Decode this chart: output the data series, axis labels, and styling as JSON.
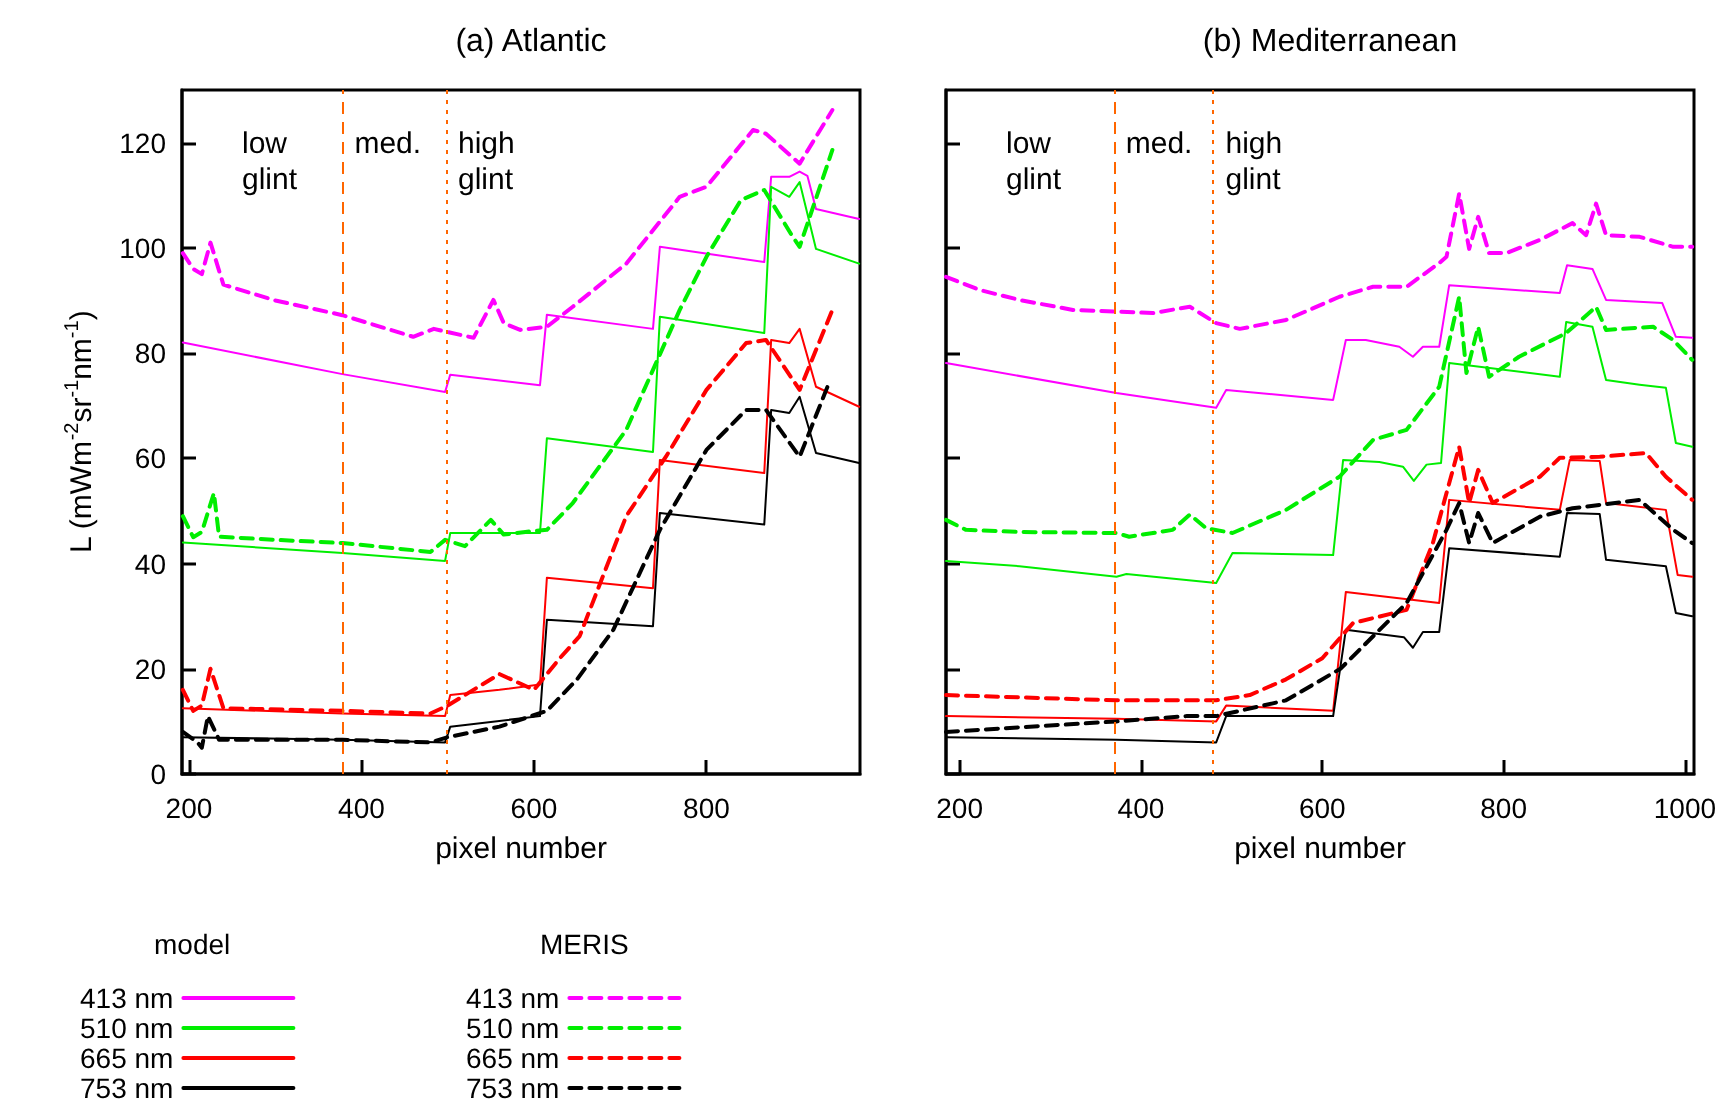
{
  "chart_data": [
    {
      "type": "line",
      "title": "(a) Atlantic",
      "xlabel": "pixel number",
      "ylabel": "L (mWm$^{-2}$sr$^{-1}$nm$^{-1}$)",
      "xlim": [
        192,
        978
      ],
      "xticks": [
        200,
        400,
        600,
        800
      ],
      "ylim": [
        0,
        130
      ],
      "yticks": [
        0,
        20,
        40,
        60,
        80,
        100,
        120
      ],
      "grid": false,
      "marker": "none",
      "legend": "bottom left",
      "annotations": [
        "model",
        "MERIS",
        "low\nglint",
        "med.",
        "high\nglint"
      ],
      "ref_lines": [
        {
          "axis": "x",
          "value": 378,
          "color": "#ff6600",
          "line_style": "dashed"
        },
        {
          "axis": "x",
          "value": 498,
          "color": "#ff6600",
          "line_style": "dotted"
        }
      ],
      "series": [
        {
          "name": "413 nm",
          "color": "#ff00ff",
          "line_style": "solid",
          "x": [
            193,
            378,
            497,
            503,
            607,
            615,
            738,
            746,
            867,
            875,
            896,
            908,
            917,
            927,
            977
          ],
          "values": [
            82,
            76,
            72.6,
            75.9,
            73.9,
            87.3,
            84.6,
            100.2,
            97.3,
            113.5,
            113.5,
            114.5,
            113.7,
            107.4,
            105.5
          ]
        },
        {
          "name": "510 nm",
          "color": "#00ee00",
          "line_style": "solid",
          "x": [
            193,
            378,
            497,
            503,
            607,
            615,
            738,
            746,
            867,
            875,
            896,
            908,
            927,
            977
          ],
          "values": [
            44,
            42,
            40.5,
            45.8,
            45.8,
            63.8,
            61.2,
            86.9,
            83.8,
            111.6,
            109.7,
            112.5,
            99.8,
            97
          ]
        },
        {
          "name": "665 nm",
          "color": "#ff0000",
          "line_style": "solid",
          "x": [
            193,
            378,
            497,
            503,
            560,
            607,
            615,
            738,
            746,
            867,
            875,
            896,
            908,
            927,
            977
          ],
          "values": [
            12.5,
            11.5,
            11,
            15,
            16,
            17,
            37.3,
            35.3,
            59.7,
            57.2,
            82.5,
            81.9,
            84.6,
            73.6,
            69.8
          ]
        },
        {
          "name": "753 nm",
          "color": "#000000",
          "line_style": "solid",
          "x": [
            193,
            378,
            497,
            503,
            607,
            615,
            738,
            746,
            867,
            875,
            896,
            908,
            927,
            977
          ],
          "values": [
            7,
            6.5,
            6,
            9,
            11,
            29.3,
            28.1,
            49.6,
            47.4,
            69.2,
            68.6,
            71.7,
            61,
            59.1
          ]
        },
        {
          "name": "413 nm",
          "color": "#ff00ff",
          "line_style": "dashed",
          "x": [
            193,
            205,
            215,
            225,
            240,
            300,
            378,
            460,
            484,
            497,
            530,
            553,
            565,
            584,
            615,
            645,
            707,
            769,
            800,
            854,
            869,
            908,
            946
          ],
          "values": [
            99,
            96,
            95,
            101,
            93,
            90,
            87.2,
            83.1,
            84.6,
            84.1,
            82.9,
            90.1,
            85.7,
            84.4,
            85,
            88.8,
            97,
            109.7,
            111.6,
            122.4,
            121.7,
            116,
            126.2
          ]
        },
        {
          "name": "510 nm",
          "color": "#00ee00",
          "line_style": "dashed",
          "x": [
            193,
            205,
            215,
            229,
            235,
            300,
            378,
            480,
            497,
            520,
            550,
            565,
            590,
            615,
            645,
            707,
            769,
            800,
            840,
            867,
            900,
            908,
            946
          ],
          "values": [
            49,
            45,
            46,
            53.4,
            45.1,
            44.5,
            43.9,
            42.2,
            44.5,
            43.3,
            48.3,
            45.5,
            46,
            46.4,
            51.5,
            65.4,
            88.2,
            98.3,
            109.1,
            111,
            102.1,
            100.2,
            118.6
          ]
        },
        {
          "name": "665 nm",
          "color": "#ff0000",
          "line_style": "dashed",
          "x": [
            193,
            205,
            215,
            225,
            240,
            378,
            480,
            500,
            560,
            600,
            630,
            653,
            707,
            753,
            800,
            846,
            869,
            908,
            946
          ],
          "values": [
            16,
            12,
            13,
            20,
            12.5,
            12,
            11.5,
            13,
            19,
            16,
            22,
            26.2,
            49,
            60.3,
            73,
            81.9,
            82.5,
            73,
            88.2
          ]
        },
        {
          "name": "753 nm",
          "color": "#000000",
          "line_style": "dashed",
          "x": [
            193,
            210,
            215,
            222,
            235,
            378,
            480,
            500,
            560,
            615,
            650,
            692,
            746,
            800,
            846,
            869,
            908,
            942
          ],
          "values": [
            8,
            6,
            5,
            11,
            6.5,
            6.5,
            6,
            7,
            9,
            12,
            18,
            27.4,
            46.4,
            61.6,
            69.2,
            69.2,
            60.3,
            74.3
          ]
        }
      ]
    },
    {
      "type": "line",
      "title": "(b) Mediterranean",
      "xlabel": "pixel number",
      "xlim": [
        185,
        1010
      ],
      "xticks": [
        200,
        400,
        600,
        800,
        1000
      ],
      "ylim": [
        0,
        130
      ],
      "yticks": [
        0,
        20,
        40,
        60,
        80,
        100,
        120
      ],
      "grid": false,
      "marker": "none",
      "tick_labels": "x",
      "annotations": [
        "low\nglint",
        "med.",
        "high\nglint"
      ],
      "ref_lines": [
        {
          "axis": "x",
          "value": 370,
          "color": "#ff6600",
          "line_style": "dashed"
        },
        {
          "axis": "x",
          "value": 480,
          "color": "#ff6600",
          "line_style": "dotted"
        }
      ],
      "series": [
        {
          "color": "#ff00ff",
          "line_style": "solid",
          "x": [
            185,
            373,
            483,
            494,
            612,
            626,
            648,
            685,
            700,
            711,
            729,
            740,
            862,
            870,
            898,
            913,
            975,
            990,
            1008
          ],
          "values": [
            78.1,
            72.4,
            69.6,
            73,
            71.1,
            82.5,
            82.5,
            81.2,
            79.3,
            81.2,
            81.2,
            92.9,
            91.4,
            96.7,
            96,
            90.1,
            89.5,
            83.1,
            82.9
          ]
        },
        {
          "color": "#00ee00",
          "line_style": "solid",
          "x": [
            185,
            266,
            373,
            384,
            483,
            501,
            612,
            623,
            663,
            689,
            701,
            715,
            731,
            740,
            862,
            869,
            898,
            913,
            950,
            979,
            990,
            1008
          ],
          "values": [
            40.5,
            39.5,
            37.5,
            38,
            36.3,
            42,
            41.6,
            59.7,
            59.3,
            58.4,
            55.7,
            58.8,
            59.1,
            78.1,
            75.5,
            85.9,
            85,
            74.9,
            74,
            73.4,
            62.9,
            62.2
          ]
        },
        {
          "color": "#ff0000",
          "line_style": "solid",
          "x": [
            185,
            373,
            483,
            494,
            612,
            626,
            729,
            740,
            862,
            873,
            906,
            913,
            979,
            992,
            1008
          ],
          "values": [
            11,
            10.5,
            10,
            13,
            12,
            34.6,
            32.5,
            52.1,
            50.2,
            59.7,
            59.5,
            51.5,
            50.2,
            37.8,
            37.5
          ]
        },
        {
          "color": "#000000",
          "line_style": "solid",
          "x": [
            185,
            373,
            483,
            494,
            612,
            626,
            690,
            700,
            711,
            729,
            740,
            862,
            870,
            906,
            913,
            979,
            990,
            1008
          ],
          "values": [
            7,
            6.5,
            6,
            11,
            11,
            27.4,
            26,
            24,
            27,
            27,
            42.9,
            41.3,
            49.6,
            49.4,
            40.7,
            39.5,
            30.6,
            30
          ]
        },
        {
          "color": "#ff00ff",
          "line_style": "dashed",
          "x": [
            185,
            222,
            266,
            325,
            373,
            413,
            454,
            483,
            509,
            560,
            619,
            656,
            693,
            729,
            737,
            751,
            762,
            772,
            784,
            803,
            840,
            876,
            891,
            902,
            913,
            950,
            987,
            1008
          ],
          "values": [
            94.5,
            92,
            90.1,
            88.2,
            87.9,
            87.6,
            88.8,
            85.7,
            84.6,
            86.3,
            90.7,
            92.6,
            92.6,
            97.1,
            98.3,
            110.3,
            99.8,
            105.9,
            99,
            99,
            101.5,
            104.7,
            102.4,
            108.4,
            102.4,
            102.1,
            100.2,
            100.2
          ]
        },
        {
          "color": "#00ee00",
          "line_style": "dashed",
          "x": [
            185,
            207,
            266,
            373,
            387,
            435,
            454,
            472,
            501,
            560,
            619,
            656,
            693,
            729,
            751,
            759,
            772,
            784,
            817,
            869,
            902,
            913,
            965,
            987,
            1008
          ],
          "values": [
            48.3,
            46.4,
            46,
            45.8,
            45.1,
            46.4,
            49.3,
            46.7,
            45.8,
            50.2,
            56.5,
            63.5,
            65.4,
            73.6,
            90.7,
            76.2,
            85,
            75.5,
            79.3,
            83.8,
            88.8,
            84.4,
            85,
            82.5,
            78.7
          ]
        },
        {
          "color": "#ff0000",
          "line_style": "dashed",
          "x": [
            185,
            373,
            483,
            520,
            560,
            600,
            634,
            693,
            722,
            751,
            762,
            772,
            788,
            840,
            862,
            906,
            957,
            979,
            1008
          ],
          "values": [
            15,
            14,
            14,
            15,
            18,
            22,
            28.7,
            31.2,
            43.9,
            62.2,
            51.5,
            57.8,
            51.5,
            56.5,
            60.1,
            60.3,
            61,
            56.5,
            52.1
          ]
        },
        {
          "color": "#000000",
          "line_style": "dashed",
          "x": [
            185,
            373,
            450,
            483,
            560,
            620,
            693,
            737,
            751,
            762,
            772,
            788,
            840,
            876,
            950,
            987,
            1008
          ],
          "values": [
            8,
            10,
            11,
            11,
            14,
            20,
            32.5,
            46.4,
            51.5,
            43.9,
            49.6,
            43.9,
            48.9,
            50.5,
            52.1,
            46.4,
            43.9
          ]
        }
      ]
    }
  ]
}
